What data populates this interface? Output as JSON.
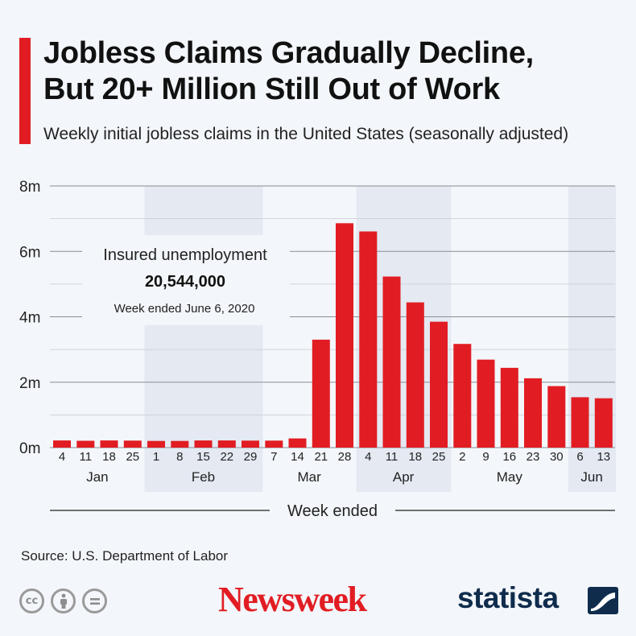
{
  "header": {
    "title_line1": "Jobless Claims Gradually Decline,",
    "title_line2": "But 20+ Million Still Out of Work",
    "subtitle": "Weekly initial jobless claims in the United States (seasonally adjusted)"
  },
  "annotation": {
    "label": "Insured unemployment",
    "value": "20,544,000",
    "note": "Week ended June 6, 2020"
  },
  "footer": {
    "source": "Source: U.S. Department of Labor",
    "newsweek": "Newsweek",
    "statista": "statista",
    "license_icons": [
      "cc-icon",
      "by-attribution-icon",
      "no-derivatives-icon"
    ]
  },
  "colors": {
    "bar": "#e11d23",
    "band": "#e4e9f2",
    "background": "#f3f6fa",
    "statista": "#0f2c4c"
  },
  "chart_data": {
    "type": "bar",
    "title": "Jobless Claims Gradually Decline, But 20+ Million Still Out of Work",
    "subtitle": "Weekly initial jobless claims in the United States (seasonally adjusted)",
    "xlabel": "Week ended",
    "ylabel": "",
    "ylim": [
      0,
      8000000
    ],
    "y_ticks": [
      {
        "value": 0,
        "label": "0m"
      },
      {
        "value": 2000000,
        "label": "2m"
      },
      {
        "value": 4000000,
        "label": "4m"
      },
      {
        "value": 6000000,
        "label": "6m"
      },
      {
        "value": 8000000,
        "label": "8m"
      }
    ],
    "grid": true,
    "categories": [
      "4",
      "11",
      "18",
      "25",
      "1",
      "8",
      "15",
      "22",
      "29",
      "7",
      "14",
      "21",
      "28",
      "4",
      "11",
      "18",
      "25",
      "2",
      "9",
      "16",
      "23",
      "30",
      "6",
      "13"
    ],
    "values": [
      220000,
      210000,
      220000,
      215000,
      205000,
      205000,
      220000,
      220000,
      215000,
      215000,
      280000,
      3300000,
      6860000,
      6610000,
      5230000,
      4440000,
      3850000,
      3170000,
      2690000,
      2440000,
      2120000,
      1880000,
      1540000,
      1510000
    ],
    "months": [
      {
        "label": "Jan",
        "start": 0,
        "end": 3,
        "shaded": false
      },
      {
        "label": "Feb",
        "start": 4,
        "end": 8,
        "shaded": true
      },
      {
        "label": "Mar",
        "start": 9,
        "end": 12,
        "shaded": false
      },
      {
        "label": "Apr",
        "start": 13,
        "end": 16,
        "shaded": true
      },
      {
        "label": "May",
        "start": 17,
        "end": 21,
        "shaded": false
      },
      {
        "label": "Jun",
        "start": 22,
        "end": 23,
        "shaded": true
      }
    ]
  }
}
